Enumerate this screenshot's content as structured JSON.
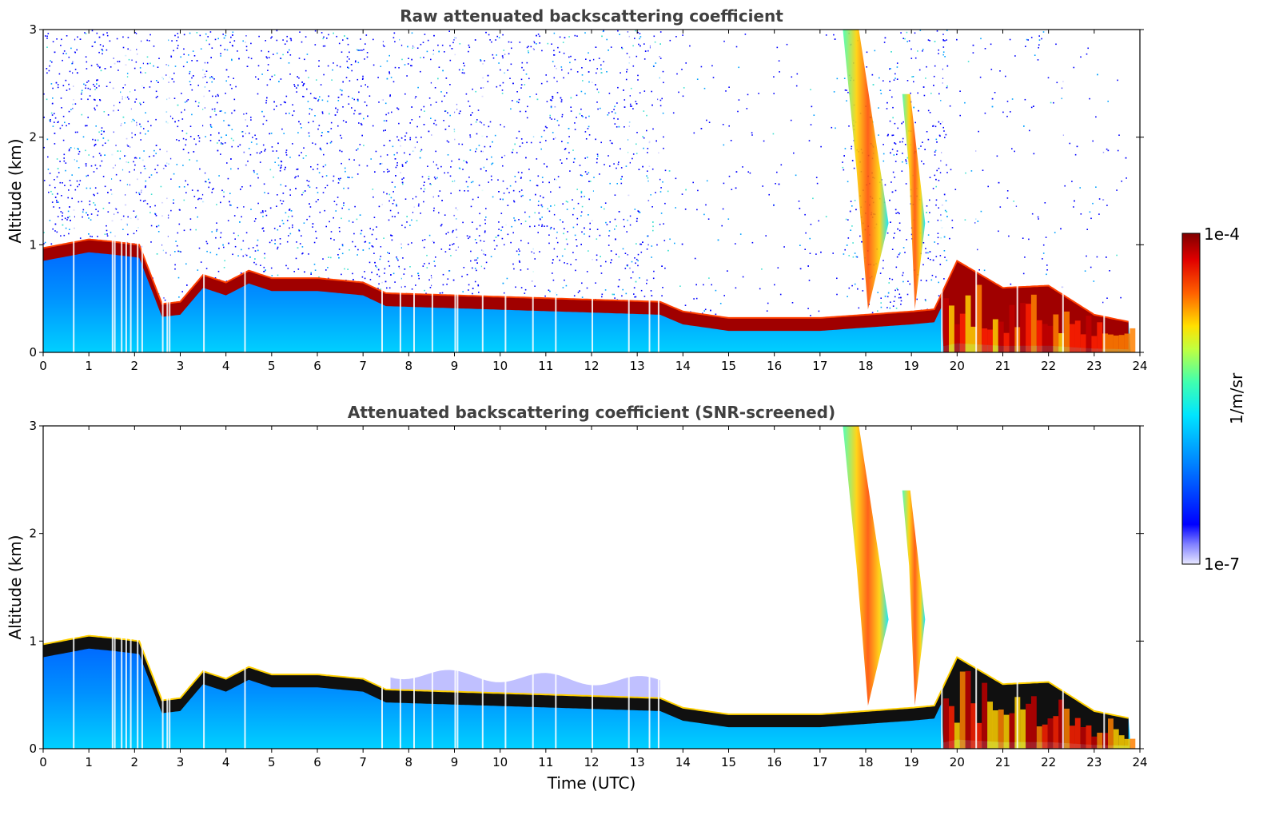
{
  "chart_data": [
    {
      "type": "heatmap",
      "title": "Raw attenuated backscattering coefficient",
      "xlabel": "",
      "ylabel": "Altitude (km)",
      "xlim": [
        0,
        24
      ],
      "ylim": [
        0,
        3
      ],
      "x_ticks": [
        "0",
        "1",
        "2",
        "3",
        "4",
        "5",
        "6",
        "7",
        "8",
        "9",
        "10",
        "11",
        "12",
        "13",
        "14",
        "15",
        "16",
        "17",
        "18",
        "19",
        "20",
        "21",
        "22",
        "23",
        "24"
      ],
      "y_ticks": [
        "0",
        "1",
        "2",
        "3"
      ],
      "layer_top_km": {
        "time_utc": [
          0,
          1,
          1.5,
          2.1,
          2.6,
          3,
          3.5,
          4,
          4.5,
          5,
          6,
          7,
          7.5,
          13.5,
          14,
          15,
          17,
          18,
          19,
          19.5,
          20,
          21,
          22,
          23,
          23.8
        ],
        "altitude": [
          0.97,
          1.05,
          1.03,
          1.0,
          0.45,
          0.47,
          0.72,
          0.65,
          0.76,
          0.69,
          0.69,
          0.65,
          0.55,
          0.47,
          0.38,
          0.32,
          0.32,
          0.35,
          0.38,
          0.4,
          0.85,
          0.6,
          0.62,
          0.35,
          0.28
        ]
      },
      "cirrus_plumes": [
        {
          "time_start": 17.5,
          "time_end": 18.5,
          "alt_bottom": 0.4,
          "alt_top": 3.0
        },
        {
          "time_start": 18.8,
          "time_end": 19.3,
          "alt_bottom": 0.4,
          "alt_top": 2.4
        }
      ]
    },
    {
      "type": "heatmap",
      "title": "Attenuated backscattering coefficient (SNR-screened)",
      "xlabel": "Time (UTC)",
      "ylabel": "Altitude (km)",
      "xlim": [
        0,
        24
      ],
      "ylim": [
        0,
        3
      ],
      "x_ticks": [
        "0",
        "1",
        "2",
        "3",
        "4",
        "5",
        "6",
        "7",
        "8",
        "9",
        "10",
        "11",
        "12",
        "13",
        "14",
        "15",
        "16",
        "17",
        "18",
        "19",
        "20",
        "21",
        "22",
        "23",
        "24"
      ],
      "y_ticks": [
        "0",
        "1",
        "2",
        "3"
      ]
    }
  ],
  "colorbar": {
    "label": "1/m/sr",
    "min_label": "1e-7",
    "max_label": "1e-4",
    "scale": "log",
    "colormap": "jet"
  }
}
